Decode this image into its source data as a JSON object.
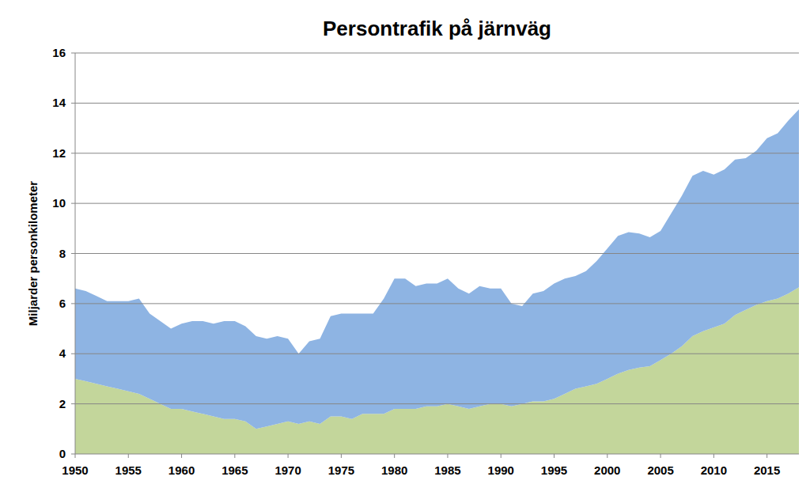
{
  "chart_data": {
    "type": "area",
    "title": "Persontrafik på järnväg",
    "y_label": "Miljarder personkilometer",
    "stacked": true,
    "grid": true,
    "x": [
      1950,
      1951,
      1952,
      1953,
      1954,
      1955,
      1956,
      1957,
      1958,
      1959,
      1960,
      1961,
      1962,
      1963,
      1964,
      1965,
      1966,
      1967,
      1968,
      1969,
      1970,
      1971,
      1972,
      1973,
      1974,
      1975,
      1976,
      1977,
      1978,
      1979,
      1980,
      1981,
      1982,
      1983,
      1984,
      1985,
      1986,
      1987,
      1988,
      1989,
      1990,
      1991,
      1992,
      1993,
      1994,
      1995,
      1996,
      1997,
      1998,
      1999,
      2000,
      2001,
      2002,
      2003,
      2004,
      2005,
      2006,
      2007,
      2008,
      2009,
      2010,
      2011,
      2012,
      2013,
      2014,
      2015,
      2016,
      2017,
      2018
    ],
    "xlim": [
      1950,
      2018
    ],
    "xticks": [
      1950,
      1955,
      1960,
      1965,
      1970,
      1975,
      1980,
      1985,
      1990,
      1995,
      2000,
      2005,
      2010,
      2015
    ],
    "ylim": [
      0,
      16
    ],
    "yticks": [
      0,
      2,
      4,
      6,
      8,
      10,
      12,
      14,
      16
    ],
    "series": [
      {
        "color": "#c3d69b",
        "values": [
          3.0,
          2.9,
          2.8,
          2.7,
          2.6,
          2.5,
          2.4,
          2.2,
          2.0,
          1.8,
          1.8,
          1.7,
          1.6,
          1.5,
          1.4,
          1.4,
          1.3,
          1.0,
          1.1,
          1.2,
          1.3,
          1.2,
          1.3,
          1.2,
          1.5,
          1.5,
          1.4,
          1.6,
          1.6,
          1.6,
          1.8,
          1.8,
          1.8,
          1.9,
          1.9,
          2.0,
          1.9,
          1.8,
          1.9,
          2.0,
          2.0,
          1.9,
          2.0,
          2.1,
          2.1,
          2.2,
          2.4,
          2.6,
          2.7,
          2.8,
          3.0,
          3.2,
          3.35,
          3.45,
          3.5,
          3.75,
          4.0,
          4.3,
          4.7,
          4.9,
          5.05,
          5.2,
          5.55,
          5.75,
          5.95,
          6.1,
          6.2,
          6.4,
          6.65
        ]
      },
      {
        "color": "#8eb4e3",
        "values": [
          3.6,
          3.6,
          3.5,
          3.4,
          3.5,
          3.6,
          3.8,
          3.4,
          3.3,
          3.2,
          3.4,
          3.6,
          3.7,
          3.7,
          3.9,
          3.9,
          3.8,
          3.7,
          3.5,
          3.5,
          3.3,
          2.8,
          3.2,
          3.4,
          4.0,
          4.1,
          4.2,
          4.0,
          4.0,
          4.6,
          5.2,
          5.2,
          4.9,
          4.9,
          4.9,
          5.0,
          4.7,
          4.6,
          4.8,
          4.6,
          4.6,
          4.1,
          3.9,
          4.3,
          4.4,
          4.6,
          4.6,
          4.5,
          4.6,
          4.9,
          5.2,
          5.5,
          5.5,
          5.35,
          5.15,
          5.15,
          5.6,
          6.0,
          6.4,
          6.4,
          6.1,
          6.15,
          6.2,
          6.05,
          6.15,
          6.5,
          6.6,
          6.9,
          7.1
        ]
      }
    ]
  }
}
